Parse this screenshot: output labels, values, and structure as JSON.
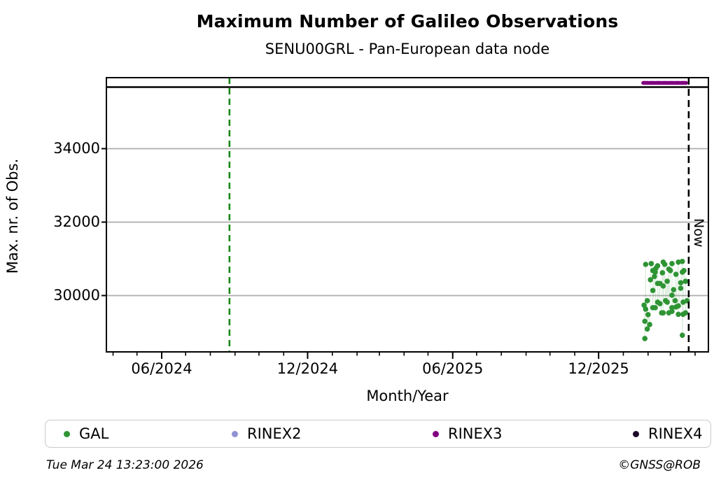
{
  "header": {
    "title": "Maximum Number of Galileo Observations",
    "subtitle": "SENU00GRL - Pan-European data node"
  },
  "footer": {
    "timestamp": "Tue Mar 24 13:23:00 2026",
    "credit": "©GNSS@ROB"
  },
  "legend": [
    {
      "label": "GAL",
      "color": "#2e9434"
    },
    {
      "label": "RINEX2",
      "color": "#9191d3"
    },
    {
      "label": "RINEX3",
      "color": "#800080"
    },
    {
      "label": "RINEX4",
      "color": "#1e0a28"
    }
  ],
  "chart_data": {
    "type": "scatter",
    "title": "Maximum Number of Galileo Observations",
    "subtitle": "SENU00GRL - Pan-European data node",
    "xlabel": "Month/Year",
    "ylabel": "Max. nr. of Obs.",
    "grid": "horizontal-only",
    "x_ticks": [
      {
        "label": "06/2024",
        "date": "2024-06-01"
      },
      {
        "label": "12/2024",
        "date": "2024-12-01"
      },
      {
        "label": "06/2025",
        "date": "2025-06-01"
      },
      {
        "label": "12/2025",
        "date": "2025-12-01"
      }
    ],
    "x_minor_tick_months": {
      "start": "2024-04-01",
      "end": "2026-04-01"
    },
    "x_range_dates": [
      "2024-03-22",
      "2026-04-20"
    ],
    "y_ticks": [
      30000,
      32000,
      34000
    ],
    "ylim": [
      28360,
      35920
    ],
    "reference_top_value": 35750,
    "event_line": {
      "date": "2024-08-25",
      "color": "#188818",
      "style": "dashed"
    },
    "now_marker": {
      "label": "Now",
      "date": "2026-03-24",
      "color": "#000000",
      "style": "dashed"
    },
    "series": [
      {
        "name": "GAL",
        "color": "#2e9434",
        "kind": "scatter-with-faint-line",
        "points": [
          [
            "2026-01-27",
            29740
          ],
          [
            "2026-01-28",
            29300
          ],
          [
            "2026-01-28",
            28830
          ],
          [
            "2026-01-29",
            30850
          ],
          [
            "2026-01-29",
            29630
          ],
          [
            "2026-01-31",
            29860
          ],
          [
            "2026-01-31",
            29090
          ],
          [
            "2026-02-01",
            29480
          ],
          [
            "2026-02-03",
            29210
          ],
          [
            "2026-02-04",
            30430
          ],
          [
            "2026-02-05",
            30870
          ],
          [
            "2026-02-07",
            30680
          ],
          [
            "2026-02-07",
            30140
          ],
          [
            "2026-02-07",
            29670
          ],
          [
            "2026-02-09",
            30520
          ],
          [
            "2026-02-10",
            30640
          ],
          [
            "2026-02-10",
            29670
          ],
          [
            "2026-02-11",
            30750
          ],
          [
            "2026-02-13",
            30810
          ],
          [
            "2026-02-13",
            30330
          ],
          [
            "2026-02-13",
            29820
          ],
          [
            "2026-02-16",
            30330
          ],
          [
            "2026-02-16",
            29780
          ],
          [
            "2026-02-18",
            29530
          ],
          [
            "2026-02-19",
            30620
          ],
          [
            "2026-02-20",
            30910
          ],
          [
            "2026-02-20",
            30260
          ],
          [
            "2026-02-20",
            29530
          ],
          [
            "2026-02-22",
            30850
          ],
          [
            "2026-02-23",
            29860
          ],
          [
            "2026-02-25",
            30390
          ],
          [
            "2026-02-25",
            29820
          ],
          [
            "2026-02-27",
            30720
          ],
          [
            "2026-02-27",
            29530
          ],
          [
            "2026-03-01",
            30680
          ],
          [
            "2026-03-03",
            30870
          ],
          [
            "2026-03-03",
            30010
          ],
          [
            "2026-03-03",
            29670
          ],
          [
            "2026-03-03",
            29570
          ],
          [
            "2026-03-05",
            30160
          ],
          [
            "2026-03-07",
            29860
          ],
          [
            "2026-03-08",
            30580
          ],
          [
            "2026-03-08",
            29690
          ],
          [
            "2026-03-11",
            30910
          ],
          [
            "2026-03-11",
            29720
          ],
          [
            "2026-03-11",
            29490
          ],
          [
            "2026-03-14",
            30350
          ],
          [
            "2026-03-14",
            30200
          ],
          [
            "2026-03-16",
            30930
          ],
          [
            "2026-03-16",
            30640
          ],
          [
            "2026-03-16",
            28920
          ],
          [
            "2026-03-17",
            29820
          ],
          [
            "2026-03-17",
            29490
          ],
          [
            "2026-03-18",
            30680
          ],
          [
            "2026-03-20",
            30390
          ],
          [
            "2026-03-20",
            29530
          ],
          [
            "2026-03-22",
            29860
          ]
        ]
      },
      {
        "name": "RINEX2",
        "color": "#9191d3",
        "kind": "format-period",
        "start": null,
        "end": null
      },
      {
        "name": "RINEX3",
        "color": "#800080",
        "kind": "format-period",
        "start": "2026-01-26",
        "end": "2026-03-22"
      },
      {
        "name": "RINEX4",
        "color": "#1e0a28",
        "kind": "format-period",
        "start": null,
        "end": null
      }
    ]
  }
}
